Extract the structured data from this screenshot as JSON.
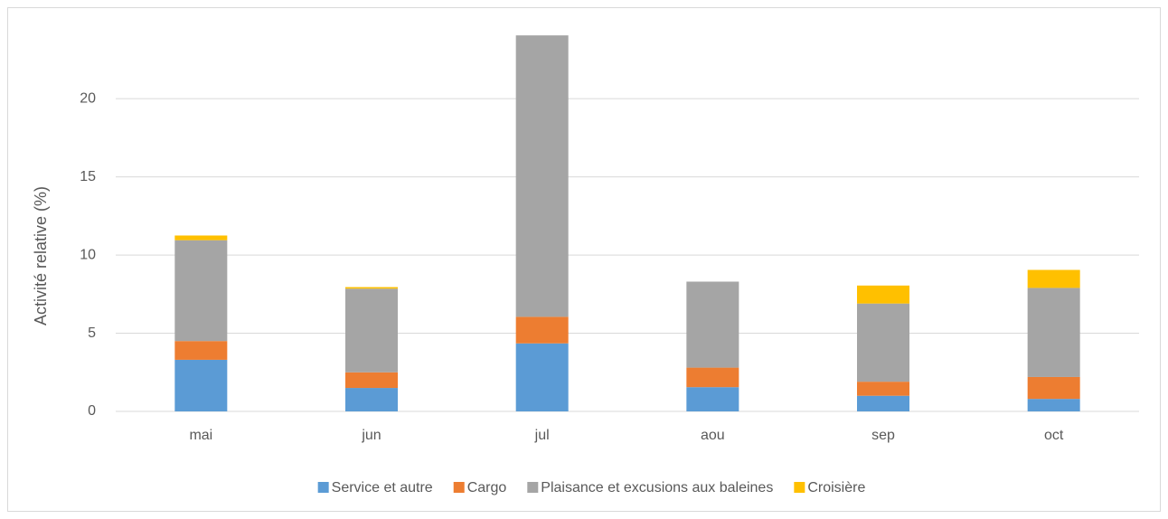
{
  "chart_data": {
    "type": "bar",
    "stacked": true,
    "y_label": "Activité relative (%)",
    "categories": [
      "mai",
      "jun",
      "jul",
      "aou",
      "sep",
      "oct"
    ],
    "series": [
      {
        "name": "Service et autre",
        "color": "#5b9bd5",
        "values": [
          3.3,
          1.5,
          4.35,
          1.55,
          1.0,
          0.8
        ]
      },
      {
        "name": "Cargo",
        "color": "#ed7d31",
        "values": [
          1.2,
          1.0,
          1.7,
          1.25,
          0.9,
          1.4
        ]
      },
      {
        "name": "Plaisance et excusions aux baleines",
        "color": "#a5a5a5",
        "values": [
          6.45,
          5.35,
          18.0,
          5.5,
          5.0,
          5.7
        ]
      },
      {
        "name": "Croisière",
        "color": "#ffc000",
        "values": [
          0.3,
          0.1,
          0,
          0,
          1.15,
          1.15
        ]
      }
    ],
    "ylim": [
      0,
      24
    ],
    "yticks": [
      0,
      5,
      10,
      15,
      20
    ],
    "grid": true,
    "legend": "bottom"
  }
}
